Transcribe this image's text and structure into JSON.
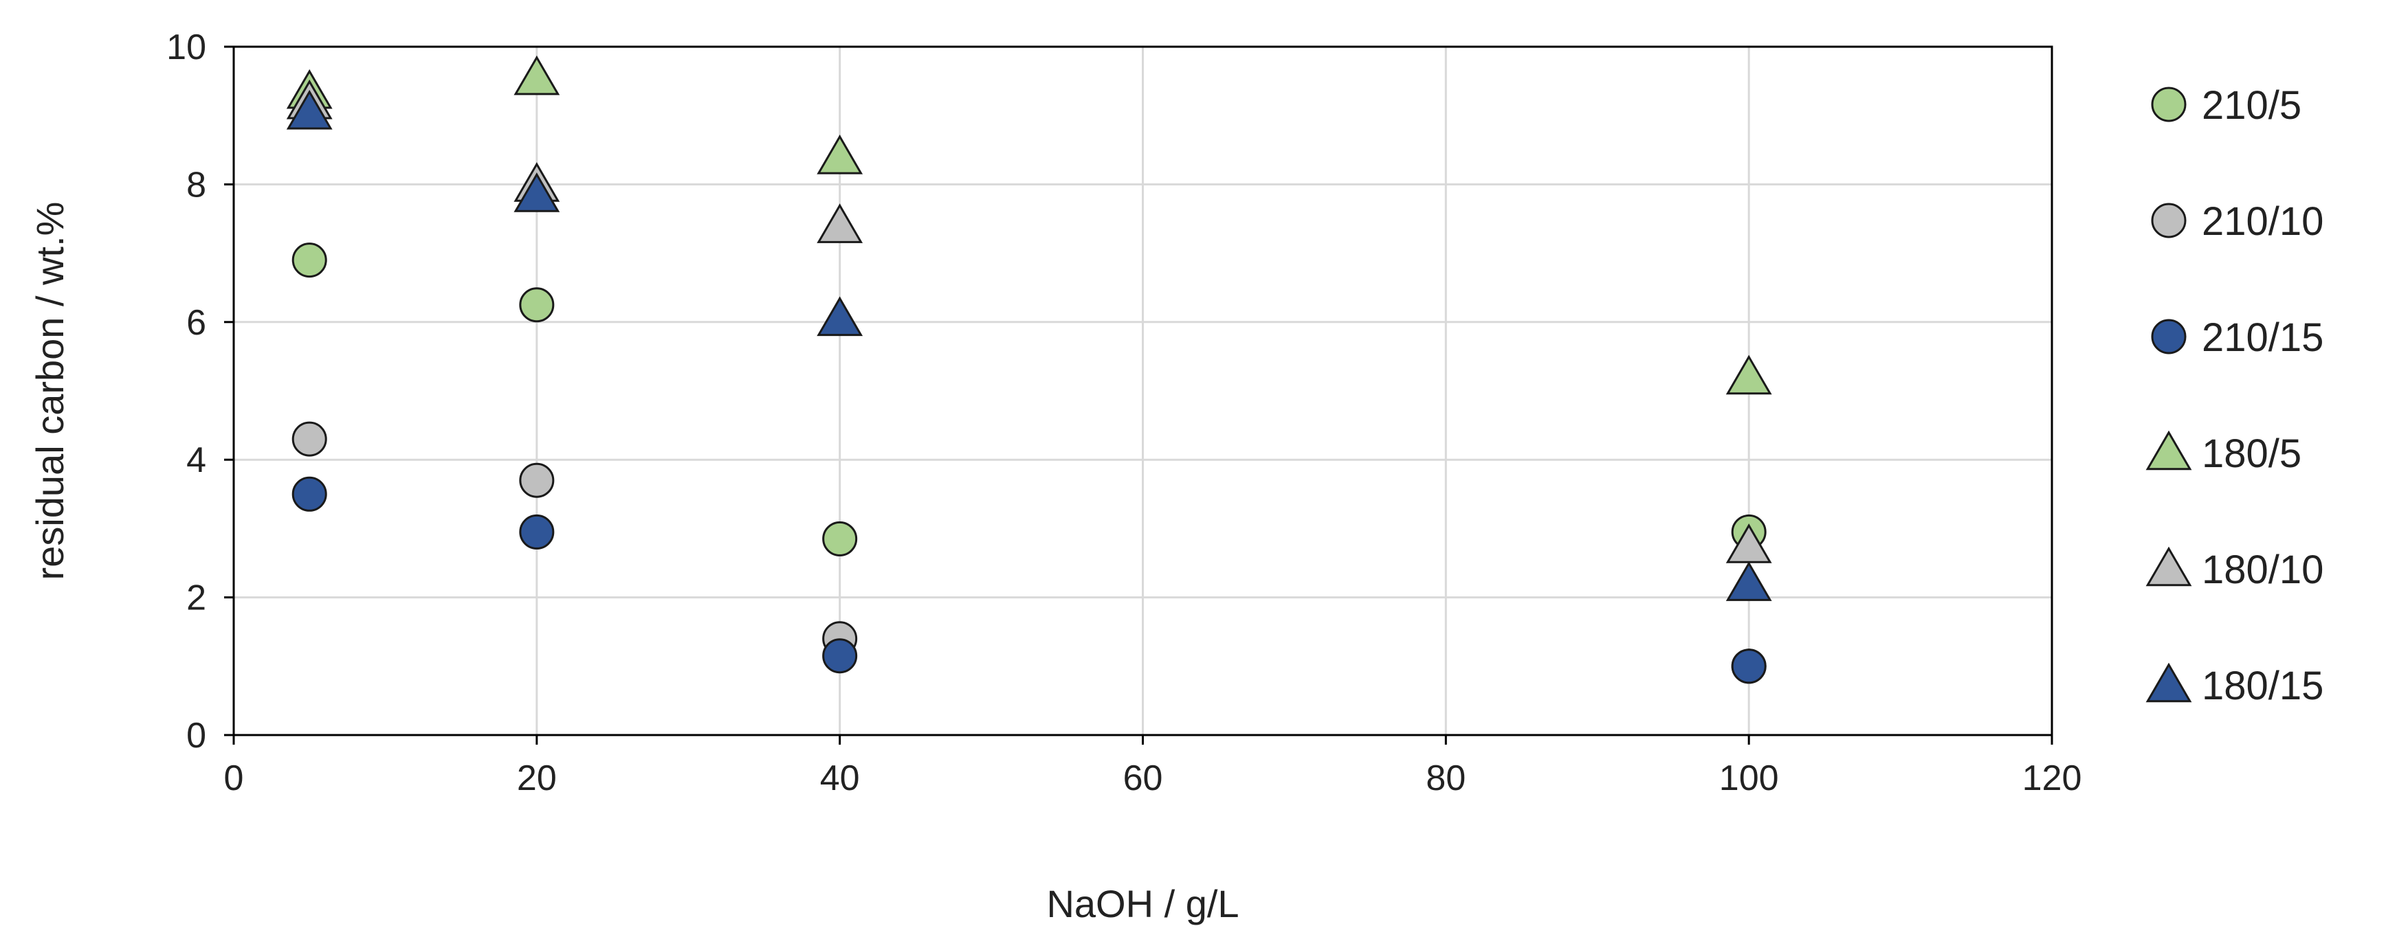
{
  "chart_data": {
    "type": "scatter",
    "xlabel": "NaOH / g/L",
    "ylabel": "residual carbon / wt.%",
    "xlim": [
      0,
      120
    ],
    "ylim": [
      0,
      10
    ],
    "xticks": [
      0,
      20,
      40,
      60,
      80,
      100,
      120
    ],
    "yticks": [
      0,
      2,
      4,
      6,
      8,
      10
    ],
    "grid": true,
    "legend_position": "right",
    "series": [
      {
        "name": "210/5",
        "marker": "circle",
        "color": "#a9d18e",
        "points": [
          [
            5,
            6.9
          ],
          [
            20,
            6.25
          ],
          [
            40,
            2.85
          ],
          [
            100,
            2.95
          ]
        ]
      },
      {
        "name": "210/10",
        "marker": "circle",
        "color": "#bfbfbf",
        "points": [
          [
            5,
            4.3
          ],
          [
            20,
            3.7
          ],
          [
            40,
            1.4
          ],
          [
            100,
            1.0
          ]
        ]
      },
      {
        "name": "210/15",
        "marker": "circle",
        "color": "#2f5597",
        "points": [
          [
            5,
            3.5
          ],
          [
            20,
            2.95
          ],
          [
            40,
            1.15
          ],
          [
            100,
            1.0
          ]
        ]
      },
      {
        "name": "180/5",
        "marker": "triangle",
        "color": "#a9d18e",
        "points": [
          [
            5,
            9.35
          ],
          [
            20,
            9.55
          ],
          [
            40,
            8.4
          ],
          [
            100,
            5.2
          ]
        ]
      },
      {
        "name": "180/10",
        "marker": "triangle",
        "color": "#bfbfbf",
        "points": [
          [
            5,
            9.2
          ],
          [
            20,
            8.0
          ],
          [
            40,
            7.4
          ],
          [
            100,
            2.75
          ]
        ]
      },
      {
        "name": "180/15",
        "marker": "triangle",
        "color": "#2f5597",
        "points": [
          [
            5,
            9.05
          ],
          [
            20,
            7.85
          ],
          [
            40,
            6.05
          ],
          [
            100,
            2.2
          ]
        ]
      }
    ]
  }
}
